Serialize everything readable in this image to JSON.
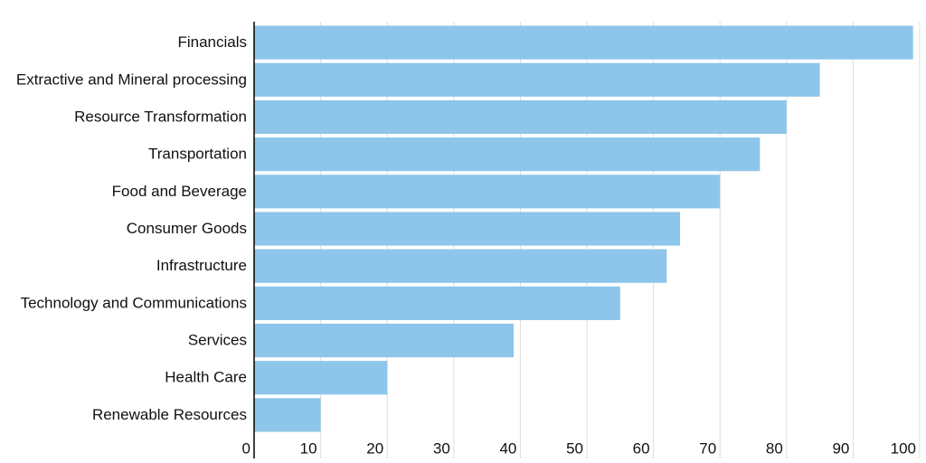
{
  "chart_data": {
    "type": "hbar",
    "categories": [
      "Financials",
      "Extractive and Mineral processing",
      "Resource Transformation",
      "Transportation",
      "Food and Beverage",
      "Consumer Goods",
      "Infrastructure",
      "Technology and Communications",
      "Services",
      "Health Care",
      "Renewable Resources"
    ],
    "values": [
      99,
      85,
      80,
      76,
      70,
      64,
      62,
      55,
      39,
      20,
      10
    ],
    "color": "#8dc6ea",
    "xlim": [
      0,
      100
    ],
    "xticks": [
      0,
      10,
      20,
      30,
      40,
      50,
      60,
      70,
      80,
      90,
      100
    ],
    "grid": true
  }
}
